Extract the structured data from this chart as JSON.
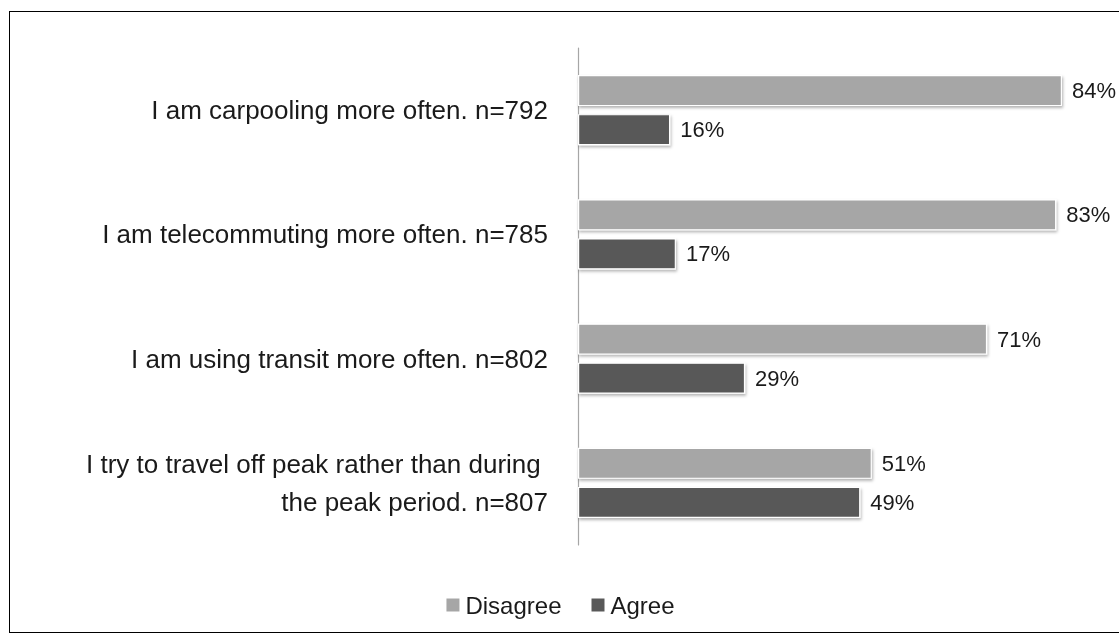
{
  "chart_data": {
    "type": "bar",
    "orientation": "horizontal",
    "categories": [
      "I am carpooling more often. n=792",
      "I am telecommuting more often. n=785",
      "I am using transit more often. n=802",
      "I try to travel off peak rather than during the peak period. n=807"
    ],
    "series": [
      {
        "name": "Disagree",
        "color": "#a6a6a6",
        "values": [
          84,
          83,
          71,
          51
        ],
        "value_labels": [
          "84%",
          "83%",
          "71%",
          "51%"
        ]
      },
      {
        "name": "Agree",
        "color": "#595959",
        "values": [
          16,
          17,
          29,
          49
        ],
        "value_labels": [
          "16%",
          "17%",
          "29%",
          "49%"
        ]
      }
    ],
    "legend": "bottom",
    "tick_labels": "y"
  }
}
